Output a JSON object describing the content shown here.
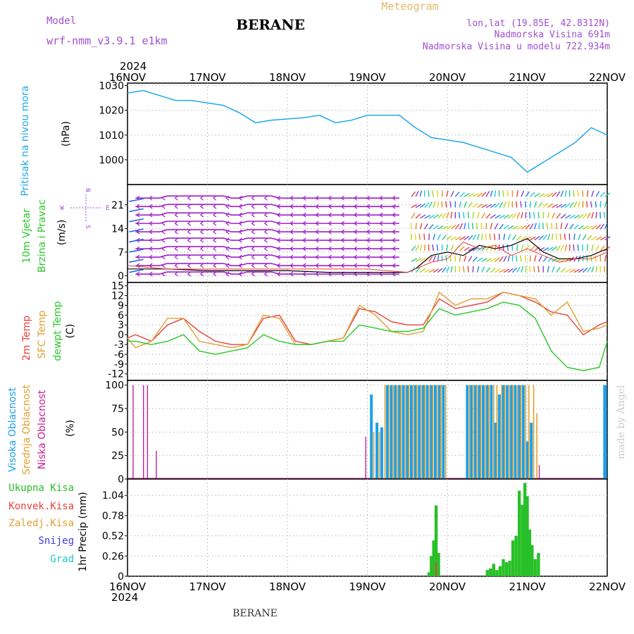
{
  "header": {
    "model_label": "Model",
    "model_name": "wrf-nmm_v3.9.1 e1km",
    "station": "BERANE",
    "meteogram_label": "Meteogram",
    "coords": "lon,lat (19.85E, 42.8312N)",
    "altitude": "Nadmorska Visina 691m",
    "model_altitude": "Nadmorska Visina u modelu 722.934m"
  },
  "footer": {
    "station": "BERANE",
    "credit": "made by Angel"
  },
  "time_axis": {
    "year": "2024",
    "ticks": [
      "16NOV",
      "17NOV",
      "18NOV",
      "19NOV",
      "20NOV",
      "21NOV",
      "22NOV"
    ]
  },
  "colors": {
    "pressure": "#1ea8e8",
    "cape": "#8c3cc8",
    "temp2m": "#e8403c",
    "sfc": "#e0a030",
    "dewpt": "#28c828",
    "high_cloud": "#1ea0e8",
    "mid_cloud": "#e0a030",
    "low_cloud": "#c81e96",
    "precip": "#28c028",
    "conv": "#e8403c",
    "snow": "#3c3cdc",
    "grad": "#1ec8c8",
    "wind_black": "#000000"
  },
  "chart_data": [
    {
      "type": "line",
      "id": "pressure",
      "ylabel": [
        "Pritisak na nivou mora",
        "(hPa)"
      ],
      "yticks": [
        1000,
        1010,
        1020,
        1030
      ],
      "ylim": [
        990,
        1031
      ],
      "x": [
        0,
        0.2,
        0.4,
        0.6,
        0.8,
        1.0,
        1.2,
        1.4,
        1.6,
        1.8,
        2.0,
        2.2,
        2.4,
        2.6,
        2.8,
        3.0,
        3.2,
        3.4,
        3.6,
        3.8,
        4.0,
        4.2,
        4.4,
        4.6,
        4.8,
        5.0,
        5.2,
        5.4,
        5.6,
        5.8,
        6.0
      ],
      "series": [
        {
          "values": [
            1027,
            1028,
            1026,
            1024,
            1024,
            1023,
            1022,
            1019,
            1015,
            1016,
            1016.5,
            1017,
            1018,
            1015,
            1016,
            1018,
            1018,
            1018,
            1013,
            1009,
            1008,
            1007,
            1005,
            1003,
            1001,
            995,
            999,
            1003,
            1007,
            1013,
            1010
          ]
        }
      ]
    },
    {
      "type": "line",
      "id": "wind",
      "ylabel": [
        "10m Vjetar",
        "Brzina i Pravac",
        "(m/s)"
      ],
      "compass": [
        "N",
        "E",
        "S",
        "W"
      ],
      "yticks": [
        0,
        7,
        14,
        21
      ],
      "ylim": [
        -2,
        27
      ],
      "x": [
        0,
        0.5,
        1.0,
        1.5,
        2.0,
        2.5,
        3.0,
        3.5,
        3.6,
        3.8,
        4.0,
        4.2,
        4.4,
        4.6,
        4.8,
        5.0,
        5.2,
        5.4,
        5.6,
        5.8,
        6.0
      ],
      "series": [
        {
          "values": [
            2,
            2,
            1.5,
            1.5,
            1.5,
            1,
            1,
            1,
            2,
            6,
            7,
            6,
            9,
            8,
            9,
            11,
            7,
            5,
            5,
            6,
            8
          ]
        },
        {
          "values": [
            3,
            2,
            2,
            2,
            2,
            2,
            2,
            1,
            2,
            4,
            5,
            10,
            8,
            9,
            6,
            8,
            6,
            4,
            5,
            5,
            7
          ]
        }
      ]
    },
    {
      "type": "line",
      "id": "temperature",
      "ylabel": [
        "2m Temp",
        "SFC Temp",
        "dewpt Temp",
        "(C)"
      ],
      "yticks": [
        -12,
        -9,
        -6,
        -3,
        0,
        3,
        6,
        9,
        12,
        15
      ],
      "ylim": [
        -14,
        16
      ],
      "x": [
        0,
        0.1,
        0.3,
        0.5,
        0.7,
        0.9,
        1.1,
        1.3,
        1.5,
        1.7,
        1.9,
        2.1,
        2.3,
        2.5,
        2.7,
        2.9,
        3.1,
        3.3,
        3.5,
        3.7,
        3.9,
        4.1,
        4.3,
        4.5,
        4.7,
        4.9,
        5.1,
        5.3,
        5.5,
        5.7,
        5.9,
        6.0
      ],
      "series": [
        {
          "name": "2m Temp",
          "values": [
            -1,
            0,
            -2,
            3,
            5,
            1,
            -2,
            -3,
            -3,
            5,
            6,
            -2,
            -3,
            -2,
            -1,
            8,
            7,
            4,
            3,
            3,
            11,
            8,
            9,
            10,
            13,
            12,
            10,
            7,
            6,
            0,
            3,
            4
          ]
        },
        {
          "name": "SFC Temp",
          "values": [
            -1,
            -4,
            -2,
            5,
            5,
            -2,
            -3,
            -4,
            -3,
            6,
            5,
            -3,
            -3,
            -2,
            -1,
            9,
            6,
            1,
            0,
            1,
            13,
            9,
            11,
            11,
            13,
            12,
            11,
            6,
            10,
            1,
            2,
            3
          ]
        },
        {
          "name": "dewpt Temp",
          "values": [
            -2,
            -2,
            -3,
            -2,
            0,
            -5,
            -6,
            -5,
            -4,
            0,
            -2,
            -3,
            -3,
            -2,
            -2,
            3,
            2,
            1,
            1,
            2,
            8,
            6,
            7,
            8,
            10,
            9,
            5,
            -5,
            -10,
            -11,
            -10,
            -2
          ]
        }
      ]
    },
    {
      "type": "bar",
      "id": "cloud",
      "ylabel": [
        "Visoka Oblacnost",
        "Srednja Oblacnost",
        "Niska Oblacnost",
        "(%)"
      ],
      "yticks": [
        0,
        25,
        50,
        75,
        100
      ],
      "ylim": [
        0,
        105
      ],
      "series": [
        {
          "name": "Visoka Oblacnost",
          "x": [
            3.05,
            3.12,
            3.18,
            3.25,
            3.3,
            3.35,
            3.4,
            3.45,
            3.5,
            3.55,
            3.6,
            3.65,
            3.7,
            3.75,
            3.8,
            3.85,
            3.9,
            3.95,
            4.25,
            4.3,
            4.35,
            4.4,
            4.45,
            4.5,
            4.55,
            4.6,
            4.65,
            4.7,
            4.75,
            4.8,
            4.85,
            4.9,
            4.95,
            5.0,
            5.05
          ],
          "values": [
            90,
            60,
            55,
            100,
            100,
            100,
            100,
            100,
            100,
            100,
            100,
            100,
            100,
            100,
            100,
            100,
            100,
            100,
            100,
            100,
            100,
            100,
            100,
            100,
            100,
            60,
            90,
            100,
            100,
            100,
            100,
            100,
            100,
            40,
            60
          ]
        },
        {
          "name": "Srednja Oblacnost",
          "x": [
            3.08,
            3.15,
            3.22,
            3.28,
            3.33,
            3.38,
            3.42,
            3.48,
            3.52,
            3.58,
            3.62,
            3.68,
            3.72,
            3.78,
            3.82,
            3.88,
            3.92,
            3.98,
            4.28,
            4.33,
            4.38,
            4.42,
            4.48,
            4.52,
            4.58,
            4.62,
            4.68,
            4.72,
            4.78,
            4.82,
            4.88,
            4.92,
            4.98,
            5.02,
            5.08,
            5.12
          ],
          "values": [
            50,
            50,
            100,
            100,
            100,
            100,
            100,
            100,
            100,
            100,
            100,
            100,
            100,
            100,
            100,
            100,
            100,
            100,
            100,
            100,
            100,
            100,
            100,
            100,
            100,
            100,
            100,
            100,
            100,
            100,
            100,
            100,
            100,
            100,
            100,
            70
          ]
        },
        {
          "name": "Niska Oblacnost",
          "x": [
            0.07,
            0.2,
            0.25,
            0.36,
            2.98,
            5.15
          ],
          "values": [
            100,
            100,
            100,
            30,
            45,
            15
          ]
        }
      ]
    },
    {
      "type": "bar",
      "id": "precip",
      "ylabel": [
        "1hr Precip",
        "(mm)"
      ],
      "legend": [
        "Ukupna Kisa",
        "Konvek.Kisa",
        "Zaledj.Kisa",
        "Snijeg",
        "Grad"
      ],
      "yticks": [
        0,
        0.26,
        0.52,
        0.78,
        1.04
      ],
      "ylim": [
        0,
        1.25
      ],
      "x": [
        3.77,
        3.8,
        3.83,
        3.86,
        3.89,
        4.5,
        4.54,
        4.58,
        4.62,
        4.66,
        4.7,
        4.74,
        4.78,
        4.82,
        4.86,
        4.9,
        4.94,
        4.97,
        5.0,
        5.03,
        5.06,
        5.1,
        5.14
      ],
      "values": [
        0.05,
        0.26,
        0.46,
        0.91,
        0.3,
        0.08,
        0.1,
        0.16,
        0.08,
        0.13,
        0.22,
        0.18,
        0.2,
        0.46,
        0.52,
        1.1,
        0.92,
        1.2,
        1.03,
        0.6,
        0.4,
        0.22,
        0.3
      ]
    }
  ]
}
